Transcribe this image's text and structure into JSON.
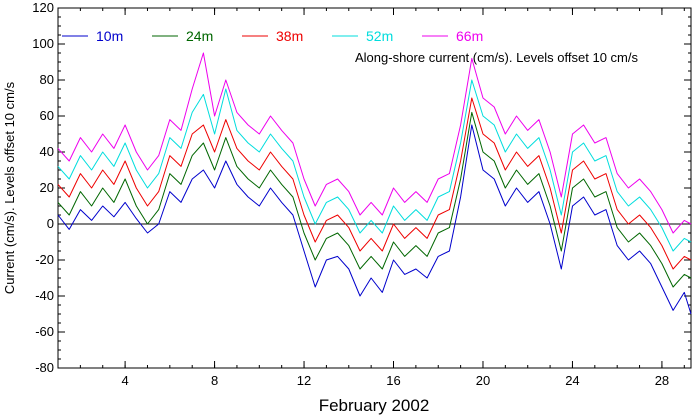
{
  "chart_data": {
    "type": "line",
    "title": "",
    "annotation": "Along-shore current (cm/s). Levels offset 10 cm/s",
    "xlabel": "February 2002",
    "ylabel": "Current (cm/s). Levels offset 10 cm/s",
    "xlim": [
      1,
      29.3
    ],
    "ylim": [
      -80,
      120
    ],
    "x_ticks": [
      4,
      8,
      12,
      16,
      20,
      24,
      28
    ],
    "y_ticks": [
      -80,
      -60,
      -40,
      -20,
      0,
      20,
      40,
      60,
      80,
      100,
      120
    ],
    "zero_line": 0,
    "grid": false,
    "legend_position": "top-left",
    "x": [
      1.0,
      1.5,
      2.0,
      2.5,
      3.0,
      3.5,
      4.0,
      4.5,
      5.0,
      5.5,
      6.0,
      6.5,
      7.0,
      7.5,
      8.0,
      8.5,
      9.0,
      9.5,
      10.0,
      10.5,
      11.0,
      11.5,
      12.0,
      12.5,
      13.0,
      13.5,
      14.0,
      14.5,
      15.0,
      15.5,
      16.0,
      16.5,
      17.0,
      17.5,
      18.0,
      18.5,
      19.0,
      19.5,
      20.0,
      20.5,
      21.0,
      21.5,
      22.0,
      22.5,
      23.0,
      23.5,
      24.0,
      24.5,
      25.0,
      25.5,
      26.0,
      26.5,
      27.0,
      27.5,
      28.0,
      28.5,
      29.0,
      29.3
    ],
    "series": [
      {
        "name": "10m",
        "color": "#0000cc",
        "values": [
          5,
          -3,
          8,
          2,
          10,
          4,
          12,
          3,
          -5,
          0,
          18,
          12,
          25,
          30,
          20,
          35,
          22,
          15,
          10,
          20,
          12,
          5,
          -15,
          -35,
          -20,
          -18,
          -25,
          -40,
          -30,
          -38,
          -20,
          -28,
          -25,
          -30,
          -18,
          -15,
          15,
          55,
          30,
          25,
          10,
          20,
          12,
          18,
          0,
          -25,
          10,
          15,
          5,
          8,
          -12,
          -20,
          -15,
          -22,
          -35,
          -48,
          -38,
          -50
        ]
      },
      {
        "name": "24m",
        "color": "#006600",
        "values": [
          12,
          5,
          18,
          10,
          20,
          12,
          25,
          10,
          0,
          8,
          28,
          22,
          38,
          45,
          30,
          48,
          32,
          25,
          20,
          30,
          22,
          15,
          -5,
          -20,
          -8,
          -5,
          -12,
          -25,
          -18,
          -25,
          -10,
          -18,
          -12,
          -18,
          -5,
          -2,
          25,
          62,
          40,
          35,
          20,
          30,
          22,
          28,
          10,
          -15,
          20,
          25,
          15,
          18,
          -2,
          -10,
          -5,
          -12,
          -22,
          -35,
          -28,
          -30
        ]
      },
      {
        "name": "38m",
        "color": "#ee0000",
        "values": [
          22,
          15,
          28,
          20,
          30,
          22,
          35,
          20,
          10,
          18,
          38,
          32,
          50,
          55,
          40,
          58,
          42,
          35,
          30,
          40,
          32,
          25,
          5,
          -10,
          2,
          5,
          -2,
          -15,
          -8,
          -15,
          0,
          -8,
          -2,
          -8,
          5,
          8,
          35,
          70,
          50,
          45,
          30,
          40,
          32,
          38,
          20,
          -5,
          30,
          35,
          25,
          28,
          8,
          0,
          5,
          -2,
          -12,
          -25,
          -18,
          -20
        ]
      },
      {
        "name": "52m",
        "color": "#00dddd",
        "values": [
          32,
          25,
          38,
          30,
          40,
          32,
          45,
          30,
          20,
          28,
          48,
          42,
          62,
          72,
          50,
          75,
          52,
          45,
          40,
          50,
          42,
          35,
          15,
          0,
          12,
          15,
          8,
          -5,
          2,
          -5,
          10,
          2,
          8,
          2,
          15,
          18,
          45,
          80,
          60,
          55,
          40,
          50,
          42,
          48,
          30,
          5,
          40,
          45,
          35,
          38,
          18,
          10,
          15,
          8,
          -2,
          -15,
          -8,
          -10
        ]
      },
      {
        "name": "66m",
        "color": "#ee00ee",
        "values": [
          42,
          35,
          48,
          40,
          50,
          42,
          55,
          40,
          30,
          38,
          58,
          52,
          75,
          95,
          60,
          80,
          62,
          55,
          50,
          60,
          52,
          45,
          25,
          10,
          22,
          25,
          18,
          5,
          12,
          5,
          20,
          12,
          18,
          12,
          25,
          28,
          55,
          92,
          70,
          65,
          50,
          60,
          52,
          58,
          40,
          15,
          50,
          55,
          45,
          48,
          28,
          20,
          25,
          18,
          8,
          -5,
          2,
          0
        ]
      }
    ]
  }
}
